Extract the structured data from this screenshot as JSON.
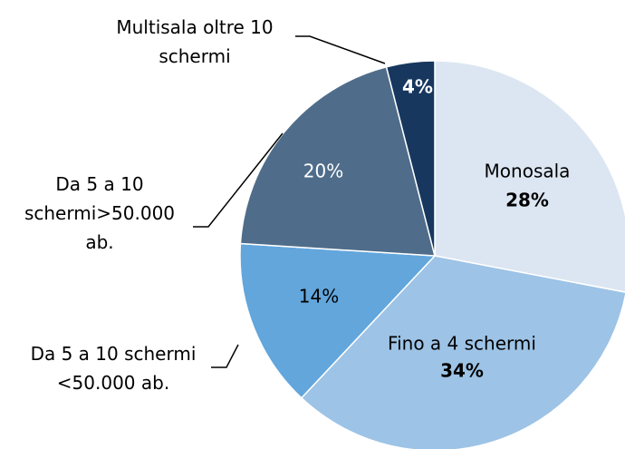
{
  "chart_data": {
    "type": "pie",
    "categories": [
      "Monosala",
      "Fino a 4 schermi",
      "Da 5 a 10 schermi <50.000 ab.",
      "Da 5 a 10 schermi>50.000 ab.",
      "Multisala oltre 10 schermi"
    ],
    "values": [
      28,
      34,
      14,
      20,
      4
    ],
    "value_labels": [
      "28%",
      "34%",
      "14%",
      "20%",
      "4%"
    ],
    "colors": [
      "#dce6f2",
      "#9dc3e6",
      "#62a6dc",
      "#4f6d8a",
      "#17375e"
    ]
  }
}
